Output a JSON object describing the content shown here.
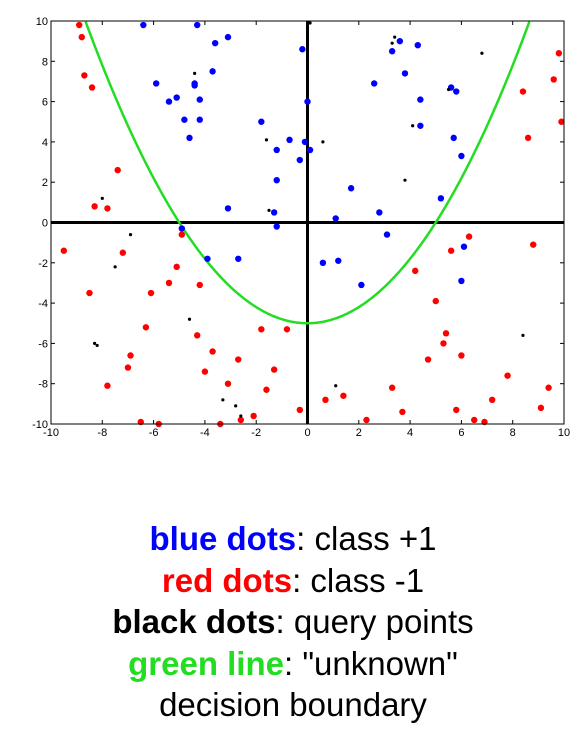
{
  "colors": {
    "blue": "#0000ff",
    "red": "#ff0000",
    "black": "#000000",
    "green": "#22dd22"
  },
  "caption": {
    "lines": [
      {
        "key": "blue dots",
        "sep": ":",
        "text": " class +1",
        "color": "#0000ff"
      },
      {
        "key": "red dots",
        "sep": ":",
        "text": " class -1",
        "color": "#ff0000"
      },
      {
        "key": "black dots",
        "sep": ":",
        "text": " query points",
        "color": "#000000"
      },
      {
        "key": "green line",
        "sep": ":",
        "text": " \"unknown\"",
        "color": "#22dd22"
      }
    ],
    "last_line": "decision boundary"
  },
  "chart_data": {
    "type": "scatter",
    "xlim": [
      -10,
      10
    ],
    "ylim": [
      -10,
      10
    ],
    "xticks": [
      -10,
      -8,
      -6,
      -4,
      -2,
      0,
      2,
      4,
      6,
      8,
      10
    ],
    "yticks": [
      -10,
      -8,
      -6,
      -4,
      -2,
      0,
      2,
      4,
      6,
      8,
      10
    ],
    "xtick_labels": [
      "-10",
      "-8",
      "-6",
      "-4",
      "-2",
      "0",
      "2",
      "4",
      "6",
      "8",
      "10"
    ],
    "ytick_labels": [
      "-10",
      "-8",
      "-6",
      "-4",
      "-2",
      "0",
      "2",
      "4",
      "6",
      "8",
      "10"
    ],
    "axes_lines_through_origin": true,
    "curve": {
      "equation": "y = x^2/5 - 5",
      "x_range": [
        -10,
        10
      ],
      "color": "#22dd22"
    },
    "series": [
      {
        "color": "#0000ff",
        "x": [
          -6.4,
          -5.9,
          -5.1,
          -5.4,
          -4.8,
          -4.6,
          -4.4,
          -4.2,
          -4.3,
          -4.4,
          -4.2,
          -3.7,
          -3.1,
          -3.6,
          -1.8,
          -1.2,
          -1.2,
          -1.3,
          -1.2,
          -0.7,
          -0.3,
          -0.2,
          -0.1,
          0.0,
          0.1,
          0.6,
          1.1,
          1.7,
          2.1,
          2.6,
          2.8,
          3.3,
          3.6,
          3.8,
          4.3,
          4.4,
          4.4,
          5.2,
          5.6,
          5.8,
          5.7,
          6.0,
          6.1,
          6.0,
          3.1,
          1.2,
          -3.9,
          -3.1,
          -4.9,
          -2.7
        ],
        "y": [
          9.8,
          6.9,
          6.2,
          6.0,
          5.1,
          4.2,
          6.8,
          5.1,
          9.8,
          6.9,
          6.1,
          7.5,
          9.2,
          8.9,
          5.0,
          3.6,
          2.1,
          0.5,
          -0.2,
          4.1,
          3.1,
          8.6,
          4.0,
          6.0,
          3.6,
          -2.0,
          0.2,
          1.7,
          -3.1,
          6.9,
          0.5,
          8.5,
          9.0,
          7.4,
          8.8,
          6.1,
          4.8,
          1.2,
          6.7,
          6.5,
          4.2,
          3.3,
          -1.2,
          -2.9,
          -0.6,
          -1.9,
          -1.8,
          0.7,
          -0.3,
          -1.8
        ]
      },
      {
        "color": "#ff0000",
        "x": [
          -8.9,
          -8.8,
          -8.7,
          -8.4,
          -8.3,
          -7.8,
          -7.4,
          -7.2,
          -7.0,
          -6.9,
          -6.5,
          -6.1,
          -5.8,
          -5.4,
          -5.1,
          -4.3,
          -4.2,
          -4.0,
          -3.7,
          -3.4,
          -3.1,
          -2.7,
          -2.6,
          -2.1,
          -1.8,
          -1.6,
          -1.3,
          -0.8,
          -0.3,
          0.7,
          1.4,
          2.3,
          3.3,
          3.7,
          4.2,
          4.7,
          5.0,
          5.3,
          5.4,
          5.6,
          5.8,
          6.0,
          6.3,
          6.5,
          6.9,
          7.2,
          7.8,
          8.4,
          8.6,
          8.8,
          9.1,
          9.4,
          9.6,
          9.8,
          9.9,
          -9.5,
          -8.5,
          -7.8,
          -6.3,
          -4.9
        ],
        "y": [
          9.8,
          9.2,
          7.3,
          6.7,
          0.8,
          0.7,
          2.6,
          -1.5,
          -7.2,
          -6.6,
          -9.9,
          -3.5,
          -10.0,
          -3.0,
          -2.2,
          -5.6,
          -3.1,
          -7.4,
          -6.4,
          -10.0,
          -8.0,
          -6.8,
          -9.8,
          -9.6,
          -5.3,
          -8.3,
          -7.3,
          -5.3,
          -9.3,
          -8.8,
          -8.6,
          -9.8,
          -8.2,
          -9.4,
          -2.4,
          -6.8,
          -3.9,
          -6.0,
          -5.5,
          -1.4,
          -9.3,
          -6.6,
          -0.7,
          -9.8,
          -9.9,
          -8.8,
          -7.6,
          6.5,
          4.2,
          -1.1,
          -9.2,
          -8.2,
          7.1,
          8.4,
          5.0,
          -1.4,
          -3.5,
          -8.1,
          -5.2,
          -0.6
        ]
      },
      {
        "color": "#000000",
        "x": [
          -8.2,
          -8.0,
          -7.5,
          -6.9,
          -4.4,
          -1.6,
          -1.5,
          -2.6,
          0.6,
          1.1,
          3.3,
          3.4,
          3.8,
          4.1,
          5.5,
          6.8,
          8.4,
          0.1,
          -8.3,
          -2.8,
          -3.3,
          -4.6
        ],
        "y": [
          -6.1,
          1.2,
          -2.2,
          -0.6,
          7.4,
          4.1,
          0.6,
          -9.6,
          4.0,
          -8.1,
          8.9,
          9.2,
          2.1,
          4.8,
          6.6,
          8.4,
          -5.6,
          9.9,
          -6.0,
          -9.1,
          -8.8,
          -4.8
        ]
      }
    ]
  }
}
